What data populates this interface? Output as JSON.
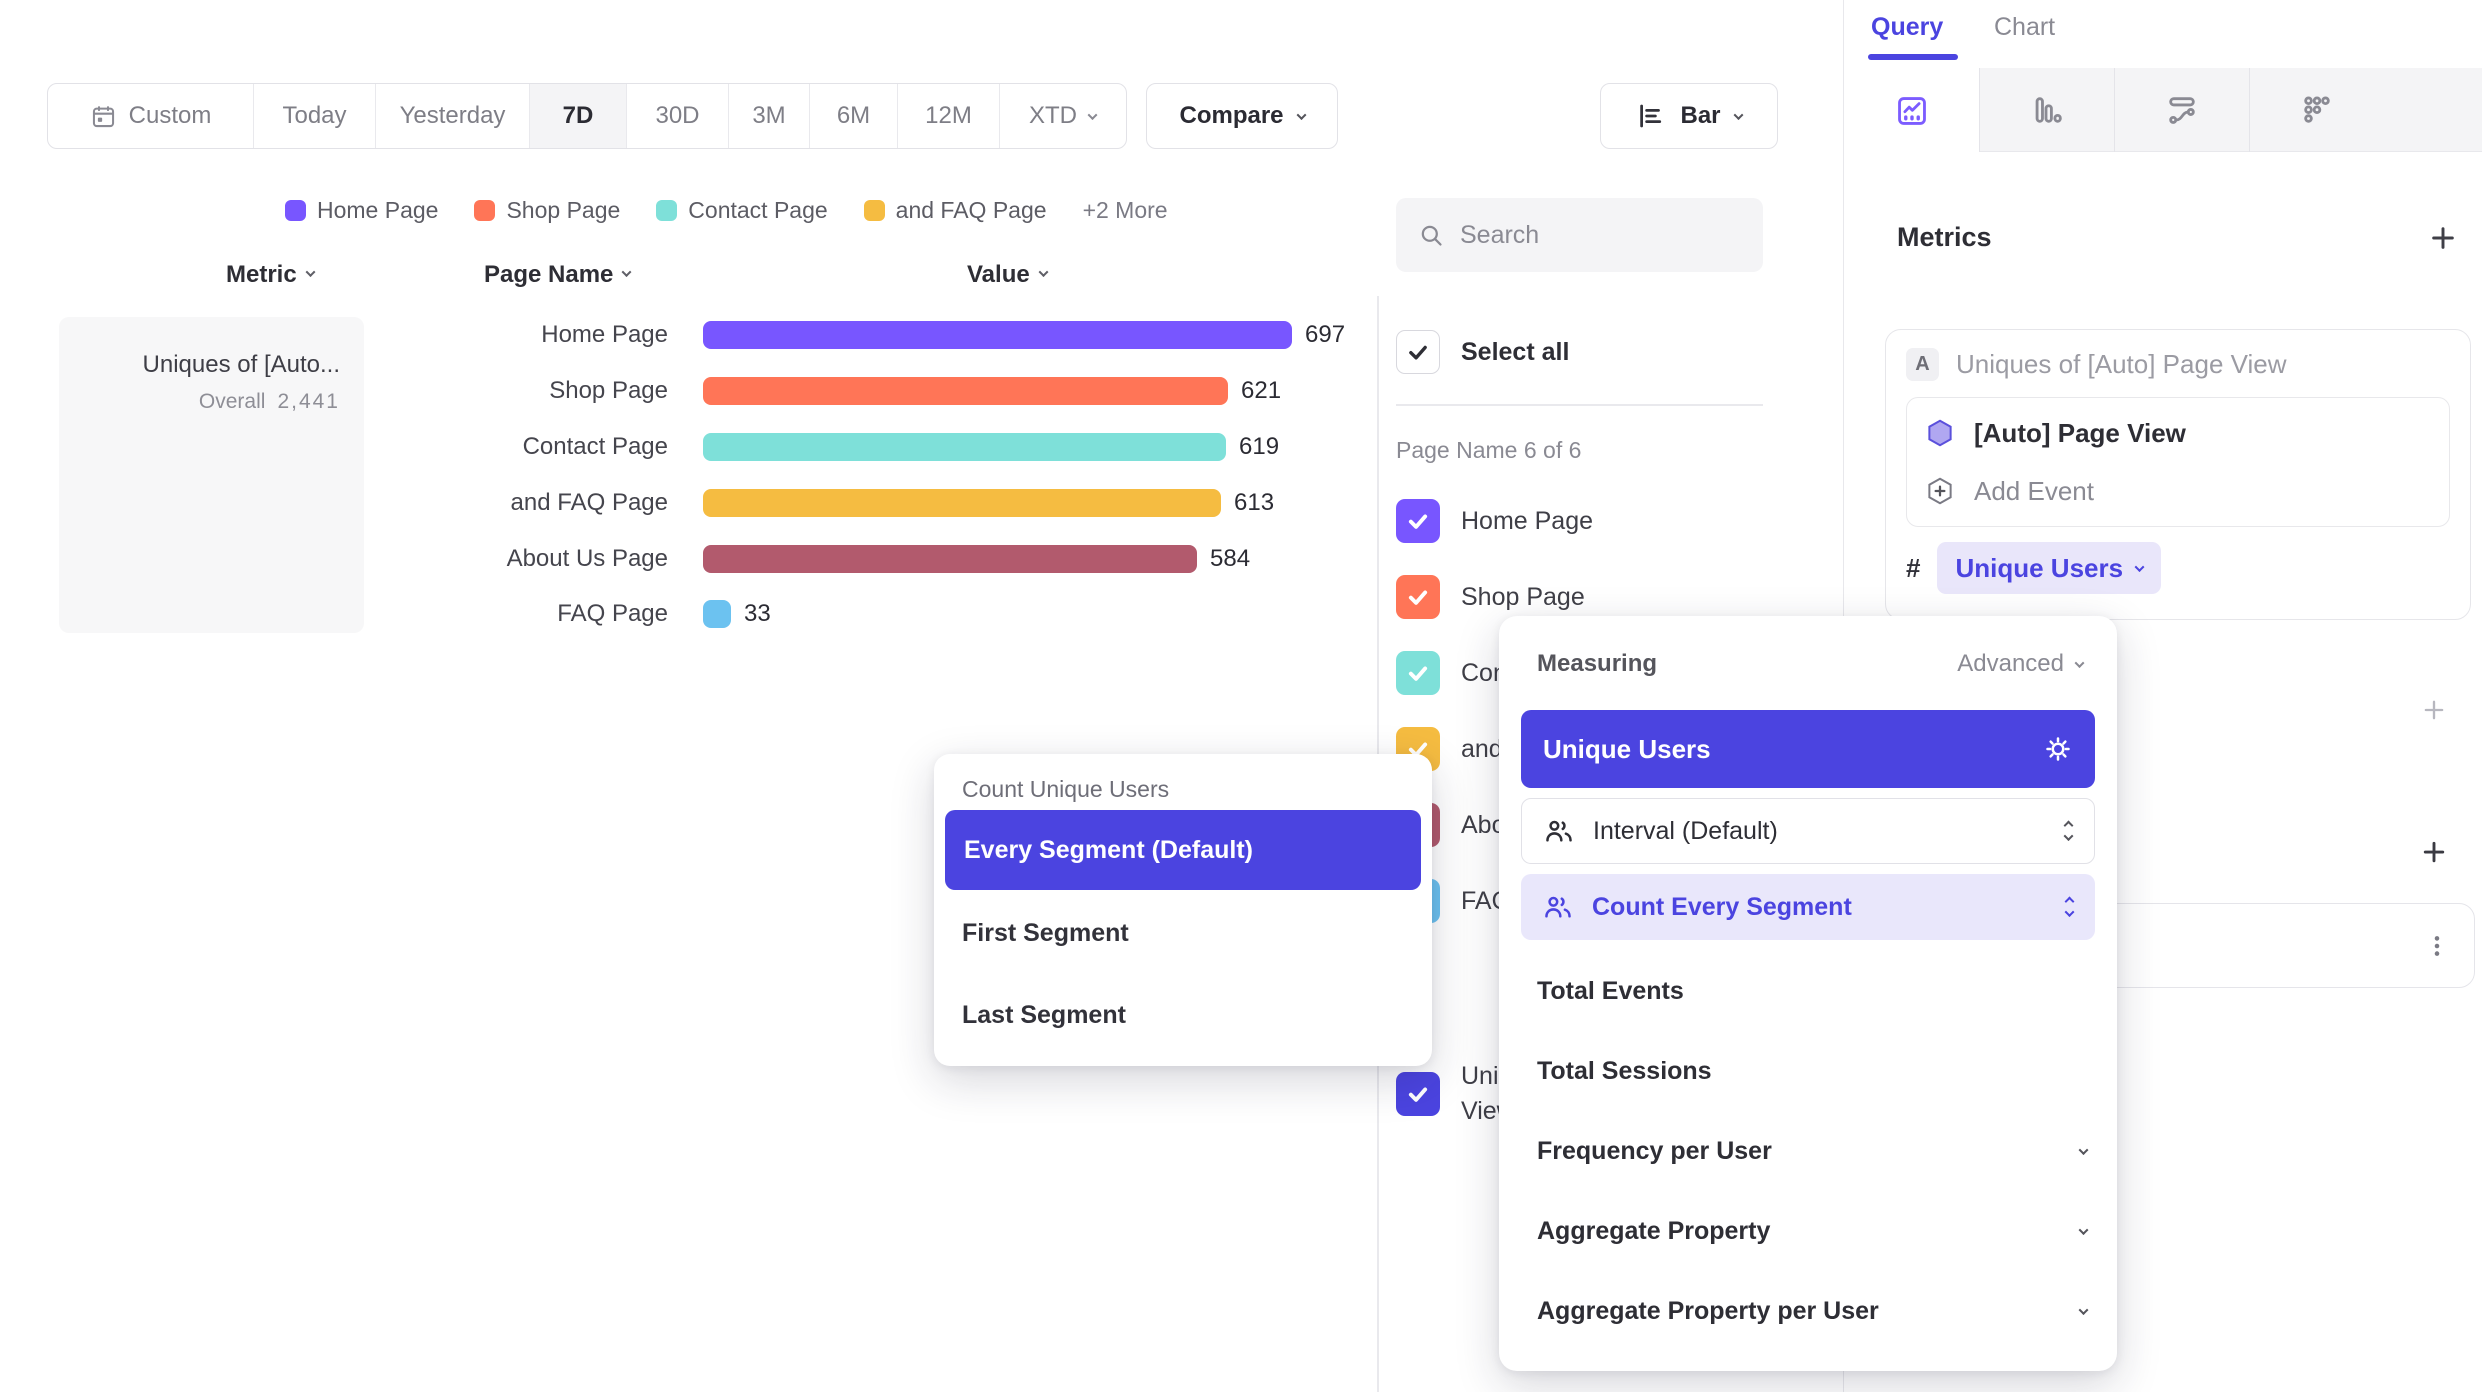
{
  "toolbar": {
    "date_ranges": [
      "Custom",
      "Today",
      "Yesterday",
      "7D",
      "30D",
      "3M",
      "6M",
      "12M",
      "XTD"
    ],
    "active_range": "7D",
    "compare_label": "Compare",
    "chart_type_label": "Bar"
  },
  "legend": {
    "items": [
      {
        "label": "Home Page",
        "color": "#7856FF"
      },
      {
        "label": "Shop Page",
        "color": "#FF7557"
      },
      {
        "label": "Contact Page",
        "color": "#7EE0D9"
      },
      {
        "label": "and FAQ Page",
        "color": "#F5BC41"
      }
    ],
    "more_label": "+2 More"
  },
  "breakdown_table": {
    "columns": {
      "metric": "Metric",
      "segment": "Page Name",
      "value": "Value"
    },
    "metric_card": {
      "title": "Uniques of [Auto...",
      "overall_label": "Overall",
      "overall_value": "2,441"
    }
  },
  "chart_data": {
    "type": "bar",
    "orientation": "horizontal",
    "metric": "Uniques of [Auto] Page View",
    "overall": "2,441",
    "categories": [
      "Home Page",
      "Shop Page",
      "Contact Page",
      "and FAQ Page",
      "About Us Page",
      "FAQ Page"
    ],
    "values": [
      697,
      621,
      619,
      613,
      584,
      33
    ],
    "colors": [
      "#7856FF",
      "#FF7557",
      "#7EE0D9",
      "#F5BC41",
      "#B25A6D",
      "#6CC2F0"
    ],
    "value_axis_max": 697
  },
  "segment_panel": {
    "search_placeholder": "Search",
    "select_all_label": "Select all",
    "group_label": "Page Name 6 of 6",
    "items": [
      {
        "label": "Home Page",
        "color": "#7856FF",
        "checked": true
      },
      {
        "label": "Shop Page",
        "color": "#FF7557",
        "checked": true
      },
      {
        "label": "Contact Page",
        "color": "#7EE0D9",
        "checked": true
      },
      {
        "label": "and FAQ Page",
        "color": "#F5BC41",
        "checked": true
      },
      {
        "label": "About Us Page",
        "color": "#B25A6D",
        "checked": true
      },
      {
        "label": "FAQ Page",
        "color": "#6CC2F0",
        "checked": true
      }
    ],
    "metric_item": {
      "label": "Uniques of [Auto] Page View",
      "color": "#4B44E0",
      "checked": true
    }
  },
  "query_panel": {
    "tabs": {
      "query": "Query",
      "chart": "Chart"
    },
    "metrics_title": "Metrics",
    "metric_card": {
      "badge": "A",
      "title": "Uniques of [Auto] Page View",
      "event_label": "[Auto] Page View",
      "add_event_label": "Add Event",
      "hash_label": "#",
      "measure_chip": "Unique Users"
    }
  },
  "count_popover": {
    "title": "Count Unique Users",
    "options": [
      {
        "label": "Every Segment (Default)",
        "selected": true
      },
      {
        "label": "First Segment",
        "selected": false
      },
      {
        "label": "Last Segment",
        "selected": false
      }
    ]
  },
  "measuring_popover": {
    "title": "Measuring",
    "advanced_label": "Advanced",
    "selected_option": "Unique Users",
    "steppers": [
      {
        "label": "Interval (Default)",
        "active": false
      },
      {
        "label": "Count Every Segment",
        "active": true
      }
    ],
    "options": [
      {
        "label": "Total Events",
        "expandable": false
      },
      {
        "label": "Total Sessions",
        "expandable": false
      },
      {
        "label": "Frequency per User",
        "expandable": true
      },
      {
        "label": "Aggregate Property",
        "expandable": true
      },
      {
        "label": "Aggregate Property per User",
        "expandable": true
      }
    ]
  },
  "colors": {
    "accent": "#4B44E0",
    "chip_bg": "#E9E6FA",
    "selected_light": "#E9E7FB"
  }
}
